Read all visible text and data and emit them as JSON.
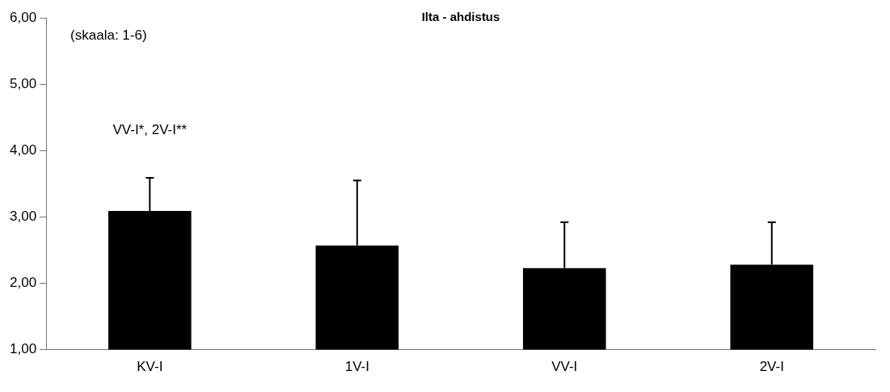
{
  "chart_data": {
    "type": "bar",
    "title": "Ilta - ahdistus",
    "categories": [
      "KV-I",
      "1V-I",
      "VV-I",
      "2V-I"
    ],
    "series": [
      {
        "color": "#000000",
        "values": [
          3.09,
          2.57,
          2.23,
          2.28
        ],
        "errors": [
          [
            3.09,
            3.59
          ],
          [
            2.57,
            3.55
          ],
          [
            2.23,
            2.92
          ],
          [
            2.28,
            2.92
          ]
        ]
      }
    ],
    "ylim": [
      1,
      6
    ],
    "yticks": [
      {
        "value": 1,
        "label": "1,00"
      },
      {
        "value": 2,
        "label": "2,00"
      },
      {
        "value": 3,
        "label": "3,00"
      },
      {
        "value": 4,
        "label": "4,00"
      },
      {
        "value": 5,
        "label": "5,00"
      },
      {
        "value": 6,
        "label": "6,00"
      }
    ],
    "grid": false,
    "legend": false,
    "annotations": [
      "(skaala: 1-6)",
      "VV-I*, 2V-I**"
    ]
  }
}
